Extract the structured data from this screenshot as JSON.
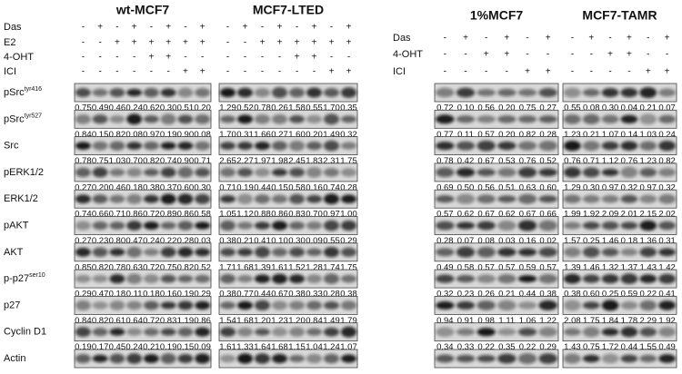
{
  "proteins": [
    {
      "label": "pSrc",
      "sup": "tyr416"
    },
    {
      "label": "pSrc",
      "sup": "tyr527"
    },
    {
      "label": "Src"
    },
    {
      "label": "pERK1/2"
    },
    {
      "label": "ERK1/2"
    },
    {
      "label": "pAKT"
    },
    {
      "label": "AKT"
    },
    {
      "label": "p-p27",
      "sup": "ser10"
    },
    {
      "label": "p27"
    },
    {
      "label": "Cyclin D1"
    },
    {
      "label": "Actin"
    }
  ],
  "left": {
    "row_labels": [
      "Das",
      "E2",
      "4-OHT",
      "ICI"
    ],
    "groups": [
      {
        "title": "wt-MCF7",
        "treatments": [
          [
            "-",
            "+",
            "-",
            "+",
            "-",
            "+",
            "-",
            "+"
          ],
          [
            "-",
            "-",
            "+",
            "+",
            "+",
            "+",
            "+",
            "+"
          ],
          [
            "-",
            "-",
            "-",
            "-",
            "+",
            "+",
            "-",
            "-"
          ],
          [
            "-",
            "-",
            "-",
            "-",
            "-",
            "-",
            "+",
            "+"
          ]
        ],
        "values": [
          [
            "0.75",
            "0.49",
            "0.46",
            "0.24",
            "0.62",
            "0.30",
            "0.51",
            "0.20"
          ],
          [
            "0.84",
            "0.15",
            "0.82",
            "0.08",
            "0.97",
            "0.19",
            "0.90",
            "0.08"
          ],
          [
            "0.78",
            "0.75",
            "1.03",
            "0.70",
            "0.82",
            "0.74",
            "0.90",
            "0.71"
          ],
          [
            "0.27",
            "0.20",
            "0.46",
            "0.18",
            "0.38",
            "0.37",
            "0.60",
            "0.30"
          ],
          [
            "0.74",
            "0.66",
            "0.71",
            "0.86",
            "0.72",
            "0.89",
            "0.86",
            "0.58"
          ],
          [
            "0.27",
            "0.23",
            "0.80",
            "0.47",
            "0.24",
            "0.22",
            "0.28",
            "0.03"
          ],
          [
            "0.85",
            "0.82",
            "0.78",
            "0.63",
            "0.72",
            "0.75",
            "0.82",
            "0.52"
          ],
          [
            "0.29",
            "0.47",
            "0.18",
            "0.11",
            "0.18",
            "0.16",
            "0.19",
            "0.29"
          ],
          [
            "0.84",
            "0.82",
            "0.61",
            "0.64",
            "0.72",
            "0.83",
            "1.19",
            "0.86"
          ],
          [
            "0.19",
            "0.17",
            "0.45",
            "0.24",
            "0.21",
            "0.19",
            "0.15",
            "0.09"
          ]
        ]
      },
      {
        "title": "MCF7-LTED",
        "treatments": [
          [
            "-",
            "+",
            "-",
            "+",
            "-",
            "+",
            "-",
            "+"
          ],
          [
            "-",
            "-",
            "+",
            "+",
            "+",
            "+",
            "+",
            "+"
          ],
          [
            "-",
            "-",
            "-",
            "-",
            "+",
            "+",
            "-",
            "-"
          ],
          [
            "-",
            "-",
            "-",
            "-",
            "-",
            "-",
            "+",
            "+"
          ]
        ],
        "values": [
          [
            "1.29",
            "0.52",
            "0.78",
            "0.26",
            "1.58",
            "0.55",
            "1.70",
            "0.35"
          ],
          [
            "1.70",
            "0.31",
            "1.66",
            "0.27",
            "1.60",
            "0.20",
            "1.49",
            "0.32"
          ],
          [
            "2.65",
            "2.27",
            "1.97",
            "1.98",
            "2.45",
            "1.83",
            "2.31",
            "1.75"
          ],
          [
            "0.71",
            "0.19",
            "0.44",
            "0.15",
            "0.58",
            "0.16",
            "0.74",
            "0.28"
          ],
          [
            "1.05",
            "1.12",
            "0.88",
            "0.86",
            "0.83",
            "0.70",
            "0.97",
            "1.00"
          ],
          [
            "0.38",
            "0.21",
            "0.41",
            "0.10",
            "0.30",
            "0.09",
            "0.55",
            "0.29"
          ],
          [
            "1.71",
            "1.68",
            "1.39",
            "1.61",
            "1.52",
            "1.28",
            "1.74",
            "1.75"
          ],
          [
            "0.38",
            "0.77",
            "0.44",
            "0.67",
            "0.38",
            "0.33",
            "0.28",
            "0.38"
          ],
          [
            "1.54",
            "1.68",
            "1.20",
            "1.23",
            "1.20",
            "0.84",
            "1.49",
            "1.79"
          ],
          [
            "1.61",
            "1.33",
            "1.64",
            "1.68",
            "1.15",
            "1.04",
            "1.24",
            "1.07"
          ]
        ]
      }
    ]
  },
  "right": {
    "row_labels": [
      "Das",
      "4-OHT",
      "ICI"
    ],
    "groups": [
      {
        "title": "1%MCF7",
        "treatments": [
          [
            "-",
            "+",
            "-",
            "+",
            "-",
            "+"
          ],
          [
            "-",
            "-",
            "+",
            "+",
            "-",
            "-"
          ],
          [
            "-",
            "-",
            "-",
            "-",
            "+",
            "+"
          ]
        ],
        "values": [
          [
            "0.72",
            "0.10",
            "0.56",
            "0.20",
            "0.75",
            "0.27"
          ],
          [
            "0.77",
            "0.11",
            "0.57",
            "0.20",
            "0.82",
            "0.28"
          ],
          [
            "0.78",
            "0.42",
            "0.67",
            "0.53",
            "0.76",
            "0.52"
          ],
          [
            "0.69",
            "0.50",
            "0.56",
            "0.51",
            "0.63",
            "0.60"
          ],
          [
            "0.57",
            "0.62",
            "0.67",
            "0.62",
            "0.67",
            "0.66"
          ],
          [
            "0.28",
            "0.07",
            "0.08",
            "0.03",
            "0.16",
            "0.02"
          ],
          [
            "0.49",
            "0.58",
            "0.57",
            "0.57",
            "0.59",
            "0.57"
          ],
          [
            "0.32",
            "0.23",
            "0.26",
            "0.21",
            "0.44",
            "0.38"
          ],
          [
            "0.94",
            "0.91",
            "0.98",
            "1.11",
            "1.06",
            "1.22"
          ],
          [
            "0.34",
            "0.33",
            "0.22",
            "0.35",
            "0.22",
            "0.29"
          ]
        ]
      },
      {
        "title": "MCF7-TAMR",
        "treatments": [
          [
            "-",
            "+",
            "-",
            "+",
            "-",
            "+"
          ],
          [
            "-",
            "-",
            "+",
            "+",
            "-",
            "-"
          ],
          [
            "-",
            "-",
            "-",
            "-",
            "+",
            "+"
          ]
        ],
        "values": [
          [
            "0.55",
            "0.08",
            "0.30",
            "0.04",
            "0.21",
            "0.07"
          ],
          [
            "1.23",
            "0.21",
            "1.07",
            "0.14",
            "1.03",
            "0.24"
          ],
          [
            "0.76",
            "0.71",
            "1.12",
            "0.76",
            "1.23",
            "0.82"
          ],
          [
            "1.29",
            "0.30",
            "0.97",
            "0.32",
            "0.97",
            "0.32"
          ],
          [
            "1.99",
            "1.92",
            "2.09",
            "2.01",
            "2.15",
            "2.02"
          ],
          [
            "1.57",
            "0.25",
            "1.46",
            "0.18",
            "1.36",
            "0.31"
          ],
          [
            "1.39",
            "1.46",
            "1.32",
            "1.37",
            "1.43",
            "1.42"
          ],
          [
            "0.38",
            "0.60",
            "0.25",
            "0.59",
            "0.22",
            "0.41"
          ],
          [
            "2.08",
            "1.75",
            "1.84",
            "1.78",
            "2.29",
            "1.92"
          ],
          [
            "1.43",
            "0.75",
            "1.72",
            "0.44",
            "1.55",
            "0.49"
          ]
        ]
      }
    ]
  }
}
